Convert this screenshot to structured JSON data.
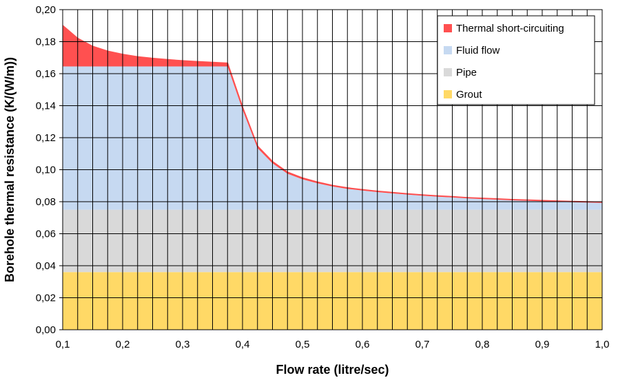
{
  "chart_data": {
    "type": "area",
    "stacked": true,
    "xlabel": "Flow rate (litre/sec)",
    "ylabel": "Borehole thermal resistance (K/(W/m))",
    "xlim": [
      0.1,
      1.0
    ],
    "ylim": [
      0.0,
      0.2
    ],
    "x_ticks": [
      "0,1",
      "0,2",
      "0,3",
      "0,4",
      "0,5",
      "0,6",
      "0,7",
      "0,8",
      "0,9",
      "1,0"
    ],
    "y_ticks": [
      "0,00",
      "0,02",
      "0,04",
      "0,06",
      "0,08",
      "0,10",
      "0,12",
      "0,14",
      "0,16",
      "0,18",
      "0,20"
    ],
    "legend_position": "top-right",
    "x": [
      0.1,
      0.125,
      0.15,
      0.175,
      0.2,
      0.225,
      0.25,
      0.275,
      0.3,
      0.325,
      0.35,
      0.375,
      0.4,
      0.425,
      0.45,
      0.475,
      0.5,
      0.525,
      0.55,
      0.575,
      0.6,
      0.625,
      0.65,
      0.675,
      0.7,
      0.725,
      0.75,
      0.775,
      0.8,
      0.825,
      0.85,
      0.875,
      0.9,
      0.925,
      0.95,
      0.975,
      1.0
    ],
    "series": [
      {
        "name": "Grout",
        "color": "#FFD966",
        "values": [
          0.036,
          0.036,
          0.036,
          0.036,
          0.036,
          0.036,
          0.036,
          0.036,
          0.036,
          0.036,
          0.036,
          0.036,
          0.036,
          0.036,
          0.036,
          0.036,
          0.036,
          0.036,
          0.036,
          0.036,
          0.036,
          0.036,
          0.036,
          0.036,
          0.036,
          0.036,
          0.036,
          0.036,
          0.036,
          0.036,
          0.036,
          0.036,
          0.036,
          0.036,
          0.036,
          0.036,
          0.036
        ]
      },
      {
        "name": "Pipe",
        "color": "#D9D9D9",
        "values": [
          0.039,
          0.039,
          0.039,
          0.039,
          0.039,
          0.039,
          0.039,
          0.039,
          0.039,
          0.039,
          0.039,
          0.039,
          0.039,
          0.039,
          0.039,
          0.039,
          0.039,
          0.039,
          0.039,
          0.039,
          0.039,
          0.039,
          0.039,
          0.039,
          0.039,
          0.039,
          0.039,
          0.039,
          0.039,
          0.039,
          0.039,
          0.039,
          0.039,
          0.039,
          0.039,
          0.039,
          0.039
        ]
      },
      {
        "name": "Fluid flow",
        "color": "#C6D9F1",
        "values": [
          0.0895,
          0.0895,
          0.0895,
          0.0895,
          0.0895,
          0.0895,
          0.0895,
          0.0895,
          0.0895,
          0.0895,
          0.0895,
          0.0895,
          0.0625,
          0.0385,
          0.029,
          0.0225,
          0.019,
          0.0165,
          0.0145,
          0.013,
          0.012,
          0.011,
          0.0102,
          0.0095,
          0.0088,
          0.0082,
          0.0077,
          0.0072,
          0.0068,
          0.0064,
          0.006,
          0.0057,
          0.0054,
          0.0051,
          0.0049,
          0.0047,
          0.0045
        ]
      },
      {
        "name": "Thermal short-circuiting",
        "color": "#FF5050",
        "values": [
          0.0255,
          0.0175,
          0.0125,
          0.0095,
          0.0075,
          0.006,
          0.005,
          0.0042,
          0.0035,
          0.003,
          0.0025,
          0.002,
          0.0015,
          0.0012,
          0.001,
          0.0009,
          0.0008,
          0.0007,
          0.0006,
          0.0006,
          0.0005,
          0.0005,
          0.0005,
          0.0004,
          0.0004,
          0.0004,
          0.0004,
          0.0003,
          0.0003,
          0.0003,
          0.0003,
          0.0003,
          0.0003,
          0.0003,
          0.0002,
          0.0002,
          0.0002
        ]
      }
    ],
    "legend_order": [
      "Thermal short-circuiting",
      "Fluid flow",
      "Pipe",
      "Grout"
    ]
  }
}
